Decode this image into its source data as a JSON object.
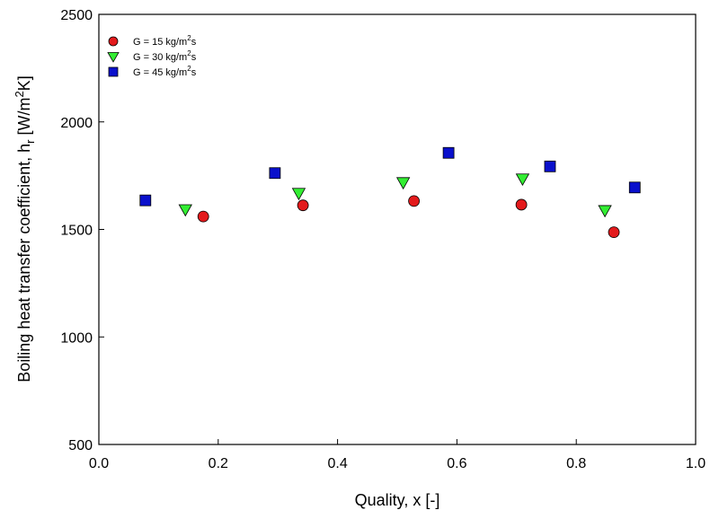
{
  "chart_data": {
    "type": "scatter",
    "xlabel": "Quality, x [-]",
    "ylabel": {
      "base": "Boiling heat transfer coefficient, h",
      "subscript": "r",
      "unit_open": " [W/m",
      "unit_sup": "2",
      "unit_close": "K]"
    },
    "xlim": [
      0.0,
      1.0
    ],
    "ylim": [
      500,
      2500
    ],
    "xticks": [
      0.0,
      0.2,
      0.4,
      0.6,
      0.8,
      1.0
    ],
    "xtick_labels": [
      "0.0",
      "0.2",
      "0.4",
      "0.6",
      "0.8",
      "1.0"
    ],
    "yticks": [
      500,
      1000,
      1500,
      2000,
      2500
    ],
    "ytick_labels": [
      "500",
      "1000",
      "1500",
      "2000",
      "2500"
    ],
    "grid": false,
    "legend_position": "top-left",
    "series": [
      {
        "name": "G = 15 kg/m2s",
        "label": {
          "prefix": "G = 15 kg/m",
          "sup": "2",
          "suffix": "s"
        },
        "marker": "circle",
        "color": "#e31a1c",
        "points": [
          {
            "x": 0.175,
            "y": 1560
          },
          {
            "x": 0.342,
            "y": 1612
          },
          {
            "x": 0.528,
            "y": 1632
          },
          {
            "x": 0.708,
            "y": 1615
          },
          {
            "x": 0.863,
            "y": 1487
          }
        ]
      },
      {
        "name": "G = 30 kg/m2s",
        "label": {
          "prefix": "G = 30 kg/m",
          "sup": "2",
          "suffix": "s"
        },
        "marker": "triangle-down",
        "color": "#33ee33",
        "points": [
          {
            "x": 0.145,
            "y": 1592
          },
          {
            "x": 0.335,
            "y": 1668
          },
          {
            "x": 0.51,
            "y": 1718
          },
          {
            "x": 0.71,
            "y": 1735
          },
          {
            "x": 0.848,
            "y": 1588
          }
        ]
      },
      {
        "name": "G = 45 kg/m2s",
        "label": {
          "prefix": "G = 45 kg/m",
          "sup": "2",
          "suffix": "s"
        },
        "marker": "square",
        "color": "#0a10cc",
        "points": [
          {
            "x": 0.078,
            "y": 1635
          },
          {
            "x": 0.295,
            "y": 1762
          },
          {
            "x": 0.586,
            "y": 1856
          },
          {
            "x": 0.756,
            "y": 1793
          },
          {
            "x": 0.898,
            "y": 1695
          }
        ]
      }
    ]
  }
}
